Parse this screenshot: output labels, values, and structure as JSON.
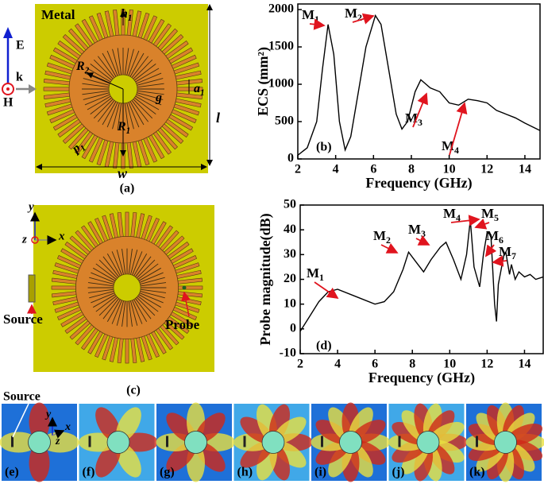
{
  "chart_data": [
    {
      "type": "line",
      "ylabel": "ECS (mm²)",
      "xlabel": "Frequency (GHz)",
      "panel": "(b)",
      "color": "#000000",
      "x": [
        2,
        2.5,
        3,
        3.3,
        3.6,
        3.9,
        4.2,
        4.5,
        4.8,
        5.2,
        5.6,
        6.1,
        6.4,
        6.8,
        7.2,
        7.5,
        7.8,
        8.2,
        8.5,
        9,
        9.5,
        10,
        10.5,
        11,
        11.5,
        12,
        12.5,
        13,
        13.5,
        14,
        14.8
      ],
      "values": [
        50,
        150,
        500,
        1200,
        1800,
        1400,
        500,
        120,
        300,
        900,
        1500,
        1920,
        1800,
        1200,
        600,
        400,
        500,
        900,
        1060,
        950,
        900,
        750,
        720,
        800,
        780,
        750,
        650,
        600,
        550,
        480,
        380
      ],
      "xlim": [
        2,
        14.8
      ],
      "ylim": [
        0,
        2075
      ],
      "xticks": [
        2,
        4,
        6,
        8,
        10,
        12,
        14
      ],
      "yticks": [
        0,
        500,
        1000,
        1500,
        2000
      ],
      "annotations": [
        {
          "t": "M",
          "s": "1"
        },
        {
          "t": "M",
          "s": "2"
        },
        {
          "t": "M",
          "s": "3"
        },
        {
          "t": "M",
          "s": "4"
        }
      ]
    },
    {
      "type": "line",
      "ylabel": "Probe magnitude(dB)",
      "xlabel": "Frequency (GHz)",
      "panel": "(d)",
      "color": "#000000",
      "x": [
        2,
        2.5,
        3,
        3.5,
        4,
        5,
        6,
        6.5,
        7,
        7.5,
        7.8,
        8.2,
        8.6,
        9,
        9.5,
        9.8,
        10.2,
        10.6,
        10.9,
        11.1,
        11.3,
        11.6,
        11.8,
        12,
        12.2,
        12.4,
        12.5,
        12.6,
        12.9,
        13,
        13.2,
        13.3,
        13.5,
        13.7,
        14,
        14.3,
        14.6,
        15
      ],
      "values": [
        -1,
        5,
        11,
        15,
        16,
        13,
        10,
        11,
        15,
        24,
        31,
        27,
        23,
        28,
        33,
        35,
        28,
        20,
        30,
        44,
        25,
        17,
        30,
        39,
        38,
        10,
        3,
        18,
        30,
        31,
        22,
        26,
        20,
        23,
        21,
        22,
        20,
        21
      ],
      "xlim": [
        2,
        15
      ],
      "ylim": [
        -10,
        50
      ],
      "xticks": [
        2,
        4,
        6,
        8,
        10,
        12,
        14
      ],
      "yticks": [
        -10,
        0,
        10,
        20,
        30,
        40,
        50
      ],
      "annotations": [
        {
          "t": "M",
          "s": "1"
        },
        {
          "t": "M",
          "s": "2"
        },
        {
          "t": "M",
          "s": "3"
        },
        {
          "t": "M",
          "s": "4"
        },
        {
          "t": "M",
          "s": "5"
        },
        {
          "t": "M",
          "s": "6"
        },
        {
          "t": "M",
          "s": "7"
        }
      ]
    }
  ],
  "panel_a": {
    "caption": "(a)",
    "metal": "Metal",
    "h": {
      "t": "h",
      "s": "1"
    },
    "R2": {
      "t": "R",
      "s": "2"
    },
    "R1": {
      "t": "R",
      "s": "1"
    },
    "g": "g",
    "a": {
      "t": "a",
      "s": "1"
    },
    "p": {
      "t": "p",
      "s": "1"
    },
    "l": "l",
    "w": "w",
    "E": "E",
    "k": "k",
    "H": "H"
  },
  "panel_c": {
    "caption": "(c)",
    "y": "y",
    "z": "z",
    "x": "x",
    "source": "Source",
    "probe": "Probe"
  },
  "field_maps": {
    "source": "Source",
    "y": "y",
    "x": "x",
    "z": "z",
    "captions": [
      "(e)",
      "(f)",
      "(g)",
      "(h)",
      "(i)",
      "(j)",
      "(k)"
    ]
  }
}
